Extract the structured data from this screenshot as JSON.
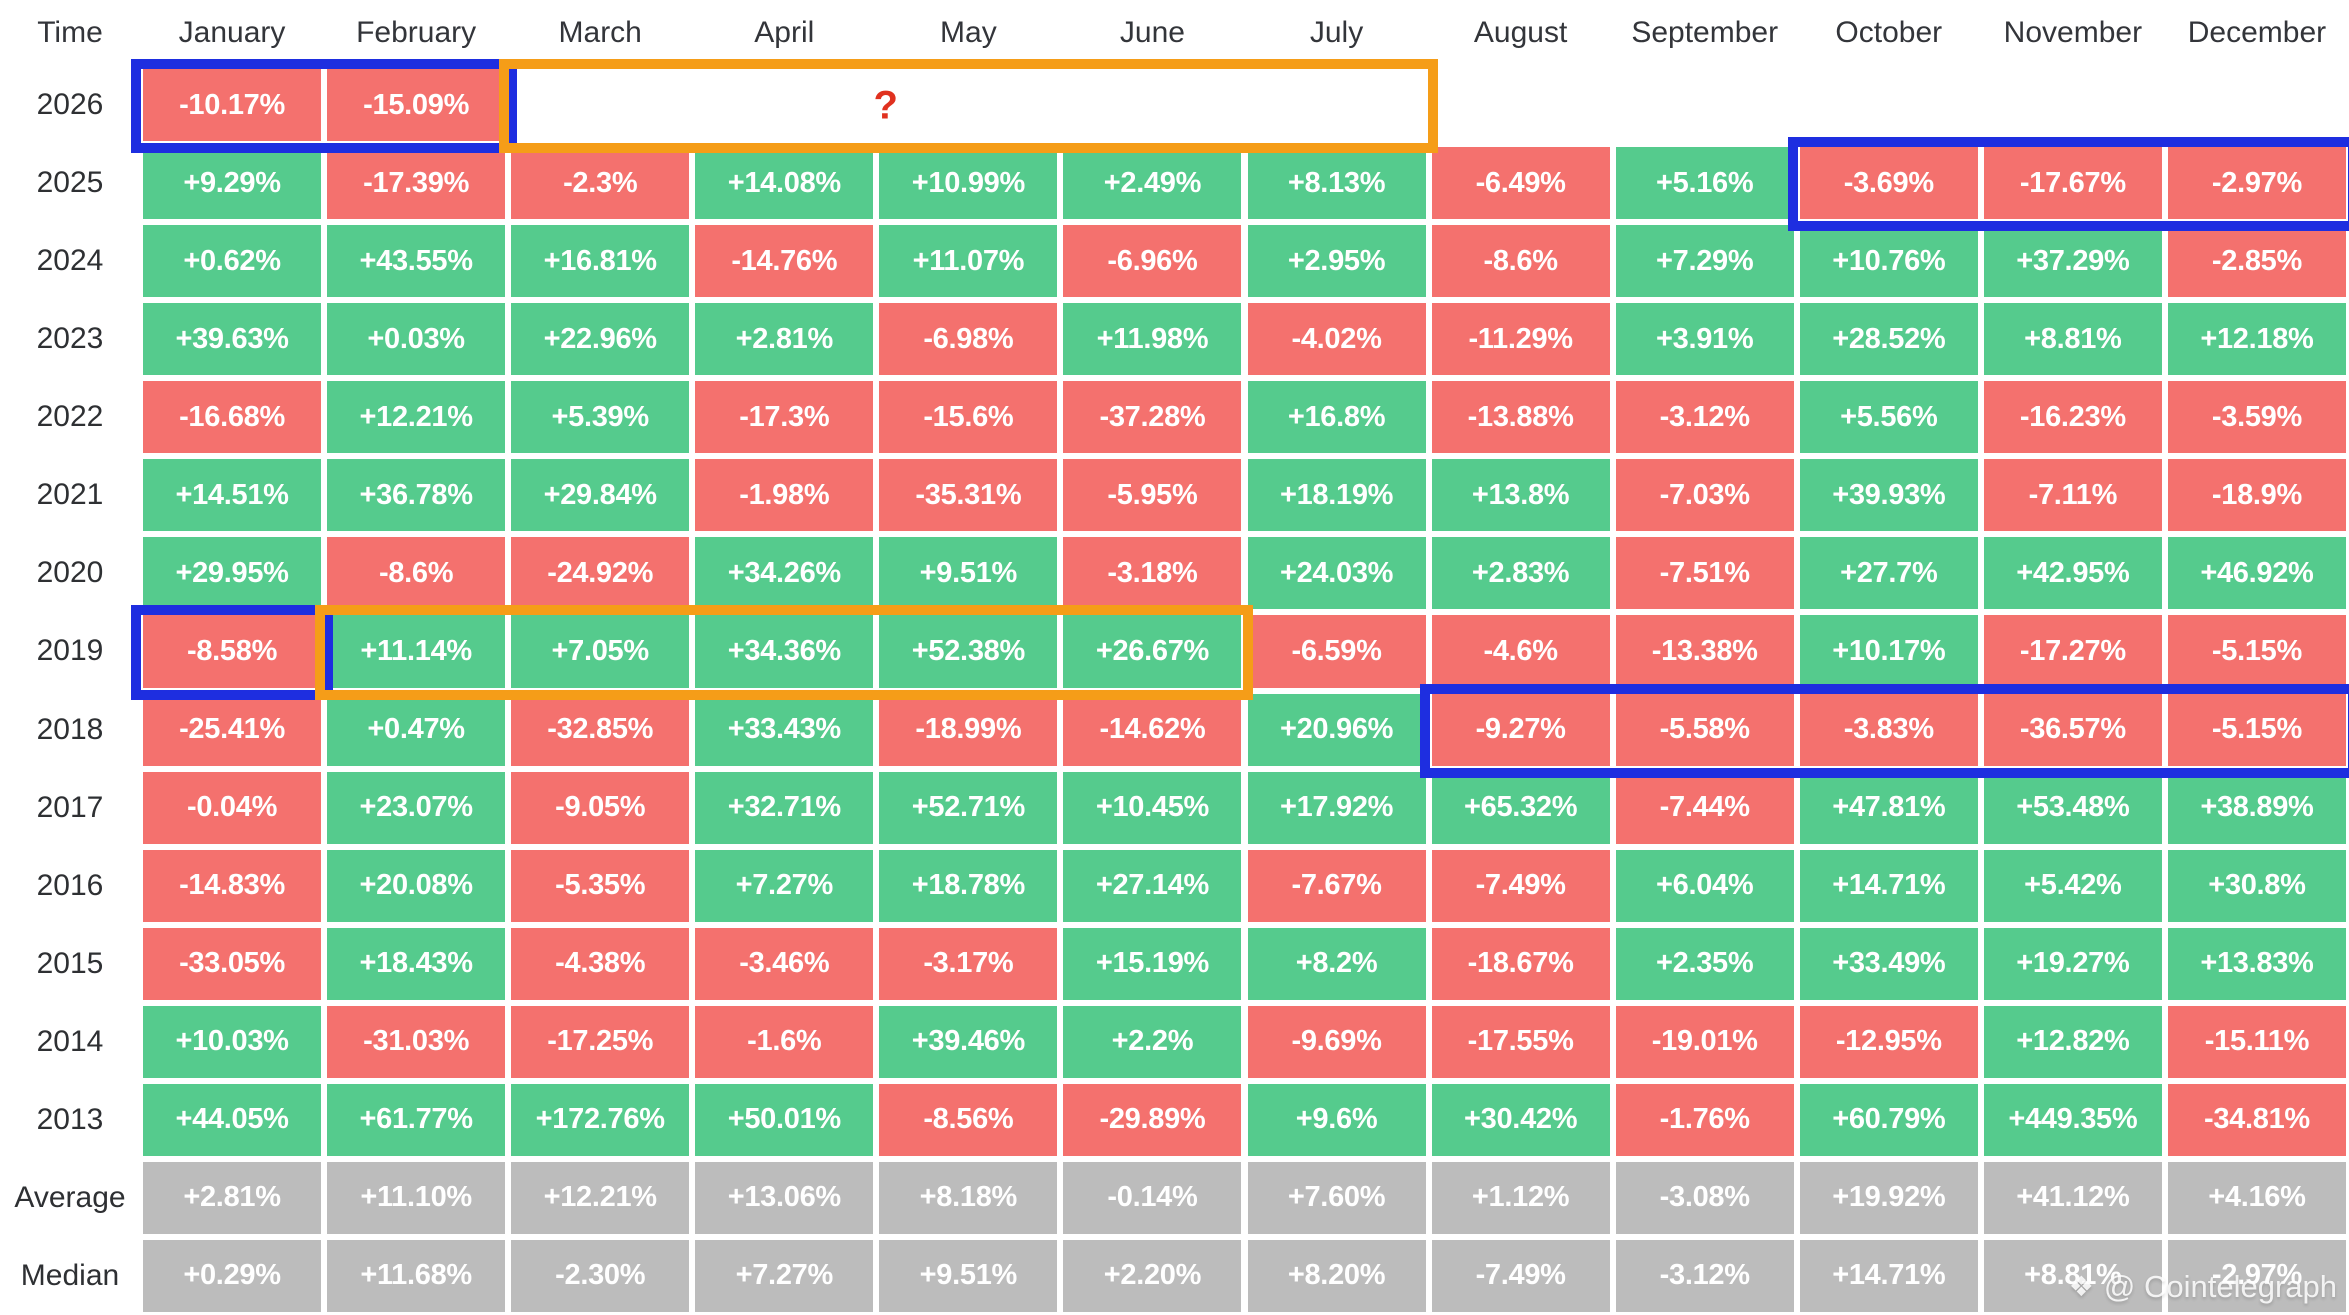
{
  "header": {
    "time_label": "Time",
    "months": [
      "January",
      "February",
      "March",
      "April",
      "May",
      "June",
      "July",
      "August",
      "September",
      "October",
      "November",
      "December"
    ]
  },
  "colors": {
    "positive_cell": "#55cb8d",
    "negative_cell": "#f4716e",
    "summary_cell": "#bcbcbc",
    "highlight_blue": "#1e2ee0",
    "highlight_orange": "#f59d18",
    "question_mark_red": "#e0311f",
    "header_text": "#33353a",
    "cell_text": "#ffffff"
  },
  "watermark": {
    "icon": "cointelegraph-logo",
    "text": "@ Cointelegraph"
  },
  "annotations": [
    {
      "row": "2026",
      "from_month": "January",
      "to_month": "February",
      "color": "blue",
      "label": ""
    },
    {
      "row": "2026",
      "from_month": "March",
      "to_month": "July",
      "color": "orange",
      "label": "?"
    },
    {
      "row": "2025",
      "from_month": "October",
      "to_month": "December",
      "color": "blue",
      "label": ""
    },
    {
      "row": "2019",
      "from_month": "January",
      "to_month": "January",
      "color": "blue",
      "label": ""
    },
    {
      "row": "2019",
      "from_month": "February",
      "to_month": "June",
      "color": "orange",
      "label": ""
    },
    {
      "row": "2018",
      "from_month": "August",
      "to_month": "December",
      "color": "blue",
      "label": ""
    }
  ],
  "chart_data": {
    "type": "heatmap",
    "columns": [
      "January",
      "February",
      "March",
      "April",
      "May",
      "June",
      "July",
      "August",
      "September",
      "October",
      "November",
      "December"
    ],
    "value_unit": "percent monthly return",
    "legend": "green = positive month, red = negative month, gray = summary row",
    "rows": [
      {
        "label": "2026",
        "summary": false,
        "values": [
          "-10.17%",
          "-15.09%",
          null,
          null,
          null,
          null,
          null,
          null,
          null,
          null,
          null,
          null
        ]
      },
      {
        "label": "2025",
        "summary": false,
        "values": [
          "+9.29%",
          "-17.39%",
          "-2.3%",
          "+14.08%",
          "+10.99%",
          "+2.49%",
          "+8.13%",
          "-6.49%",
          "+5.16%",
          "-3.69%",
          "-17.67%",
          "-2.97%"
        ]
      },
      {
        "label": "2024",
        "summary": false,
        "values": [
          "+0.62%",
          "+43.55%",
          "+16.81%",
          "-14.76%",
          "+11.07%",
          "-6.96%",
          "+2.95%",
          "-8.6%",
          "+7.29%",
          "+10.76%",
          "+37.29%",
          "-2.85%"
        ]
      },
      {
        "label": "2023",
        "summary": false,
        "values": [
          "+39.63%",
          "+0.03%",
          "+22.96%",
          "+2.81%",
          "-6.98%",
          "+11.98%",
          "-4.02%",
          "-11.29%",
          "+3.91%",
          "+28.52%",
          "+8.81%",
          "+12.18%"
        ]
      },
      {
        "label": "2022",
        "summary": false,
        "values": [
          "-16.68%",
          "+12.21%",
          "+5.39%",
          "-17.3%",
          "-15.6%",
          "-37.28%",
          "+16.8%",
          "-13.88%",
          "-3.12%",
          "+5.56%",
          "-16.23%",
          "-3.59%"
        ]
      },
      {
        "label": "2021",
        "summary": false,
        "values": [
          "+14.51%",
          "+36.78%",
          "+29.84%",
          "-1.98%",
          "-35.31%",
          "-5.95%",
          "+18.19%",
          "+13.8%",
          "-7.03%",
          "+39.93%",
          "-7.11%",
          "-18.9%"
        ]
      },
      {
        "label": "2020",
        "summary": false,
        "values": [
          "+29.95%",
          "-8.6%",
          "-24.92%",
          "+34.26%",
          "+9.51%",
          "-3.18%",
          "+24.03%",
          "+2.83%",
          "-7.51%",
          "+27.7%",
          "+42.95%",
          "+46.92%"
        ]
      },
      {
        "label": "2019",
        "summary": false,
        "values": [
          "-8.58%",
          "+11.14%",
          "+7.05%",
          "+34.36%",
          "+52.38%",
          "+26.67%",
          "-6.59%",
          "-4.6%",
          "-13.38%",
          "+10.17%",
          "-17.27%",
          "-5.15%"
        ]
      },
      {
        "label": "2018",
        "summary": false,
        "values": [
          "-25.41%",
          "+0.47%",
          "-32.85%",
          "+33.43%",
          "-18.99%",
          "-14.62%",
          "+20.96%",
          "-9.27%",
          "-5.58%",
          "-3.83%",
          "-36.57%",
          "-5.15%"
        ]
      },
      {
        "label": "2017",
        "summary": false,
        "values": [
          "-0.04%",
          "+23.07%",
          "-9.05%",
          "+32.71%",
          "+52.71%",
          "+10.45%",
          "+17.92%",
          "+65.32%",
          "-7.44%",
          "+47.81%",
          "+53.48%",
          "+38.89%"
        ]
      },
      {
        "label": "2016",
        "summary": false,
        "values": [
          "-14.83%",
          "+20.08%",
          "-5.35%",
          "+7.27%",
          "+18.78%",
          "+27.14%",
          "-7.67%",
          "-7.49%",
          "+6.04%",
          "+14.71%",
          "+5.42%",
          "+30.8%"
        ]
      },
      {
        "label": "2015",
        "summary": false,
        "values": [
          "-33.05%",
          "+18.43%",
          "-4.38%",
          "-3.46%",
          "-3.17%",
          "+15.19%",
          "+8.2%",
          "-18.67%",
          "+2.35%",
          "+33.49%",
          "+19.27%",
          "+13.83%"
        ]
      },
      {
        "label": "2014",
        "summary": false,
        "values": [
          "+10.03%",
          "-31.03%",
          "-17.25%",
          "-1.6%",
          "+39.46%",
          "+2.2%",
          "-9.69%",
          "-17.55%",
          "-19.01%",
          "-12.95%",
          "+12.82%",
          "-15.11%"
        ]
      },
      {
        "label": "2013",
        "summary": false,
        "values": [
          "+44.05%",
          "+61.77%",
          "+172.76%",
          "+50.01%",
          "-8.56%",
          "-29.89%",
          "+9.6%",
          "+30.42%",
          "-1.76%",
          "+60.79%",
          "+449.35%",
          "-34.81%"
        ]
      },
      {
        "label": "Average",
        "summary": true,
        "values": [
          "+2.81%",
          "+11.10%",
          "+12.21%",
          "+13.06%",
          "+8.18%",
          "-0.14%",
          "+7.60%",
          "+1.12%",
          "-3.08%",
          "+19.92%",
          "+41.12%",
          "+4.16%"
        ]
      },
      {
        "label": "Median",
        "summary": true,
        "values": [
          "+0.29%",
          "+11.68%",
          "-2.30%",
          "+7.27%",
          "+9.51%",
          "+2.20%",
          "+8.20%",
          "-7.49%",
          "-3.12%",
          "+14.71%",
          "+8.81%",
          "-2.97%"
        ]
      }
    ]
  }
}
